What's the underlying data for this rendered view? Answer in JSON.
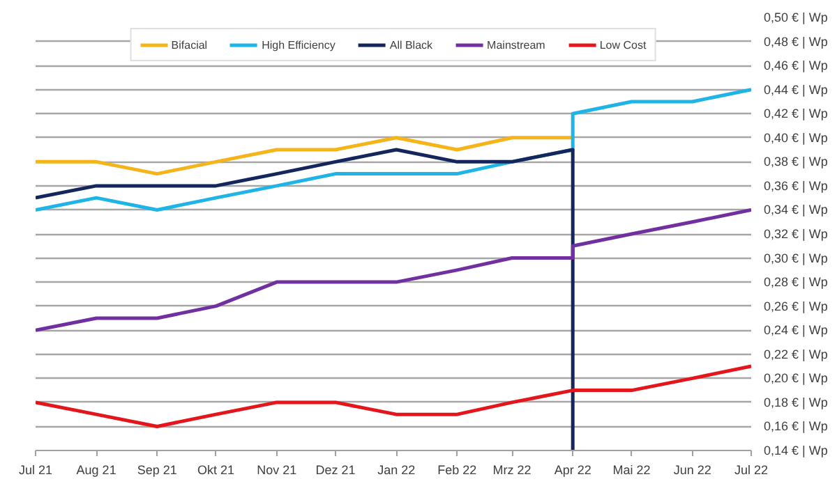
{
  "chart_data": {
    "type": "line",
    "series": [
      {
        "name": "Bifacial",
        "color": "#f4b41a",
        "x": [
          "2021-07",
          "2021-08",
          "2021-09",
          "2021-10",
          "2021-11",
          "2021-12",
          "2022-01",
          "2022-02",
          "2022-03",
          "2022-04"
        ],
        "values": [
          0.38,
          0.38,
          0.37,
          0.38,
          0.39,
          0.39,
          0.4,
          0.39,
          0.4,
          0.4
        ]
      },
      {
        "name": "High Efficiency",
        "color": "#1fb4e6",
        "x": [
          "2021-07",
          "2021-08",
          "2021-09",
          "2021-10",
          "2021-11",
          "2021-12",
          "2022-01",
          "2022-02",
          "2022-03",
          "2022-04",
          "2022-04",
          "2022-05",
          "2022-06",
          "2022-07"
        ],
        "values": [
          0.34,
          0.35,
          0.34,
          0.35,
          0.36,
          0.37,
          0.37,
          0.37,
          0.38,
          0.39,
          0.42,
          0.43,
          0.43,
          0.44
        ]
      },
      {
        "name": "All Black",
        "color": "#14265c",
        "x": [
          "2021-07",
          "2021-08",
          "2021-09",
          "2021-10",
          "2021-11",
          "2021-12",
          "2022-01",
          "2022-02",
          "2022-03",
          "2022-04",
          "2022-04"
        ],
        "values": [
          0.35,
          0.36,
          0.36,
          0.36,
          0.37,
          0.38,
          0.39,
          0.38,
          0.38,
          0.39,
          0.14
        ]
      },
      {
        "name": "Mainstream",
        "color": "#7030a0",
        "x": [
          "2021-07",
          "2021-08",
          "2021-09",
          "2021-10",
          "2021-11",
          "2021-12",
          "2022-01",
          "2022-02",
          "2022-03",
          "2022-04",
          "2022-04",
          "2022-05",
          "2022-06",
          "2022-07"
        ],
        "values": [
          0.24,
          0.25,
          0.25,
          0.26,
          0.28,
          0.28,
          0.28,
          0.29,
          0.3,
          0.3,
          0.31,
          0.32,
          0.33,
          0.34
        ]
      },
      {
        "name": "Low Cost",
        "color": "#e5161b",
        "x": [
          "2021-07",
          "2021-08",
          "2021-09",
          "2021-10",
          "2021-11",
          "2021-12",
          "2022-01",
          "2022-02",
          "2022-03",
          "2022-04",
          "2022-05",
          "2022-06",
          "2022-07"
        ],
        "values": [
          0.18,
          0.17,
          0.16,
          0.17,
          0.18,
          0.18,
          0.17,
          0.17,
          0.18,
          0.19,
          0.19,
          0.2,
          0.21
        ]
      }
    ],
    "xlim": [
      "2021-07",
      "2022-07"
    ],
    "xticks": [
      {
        "value": "2021-07",
        "label": "Jul 21"
      },
      {
        "value": "2021-08",
        "label": "Aug 21"
      },
      {
        "value": "2021-09",
        "label": "Sep 21"
      },
      {
        "value": "2021-10",
        "label": "Okt 21"
      },
      {
        "value": "2021-11",
        "label": "Nov 21"
      },
      {
        "value": "2021-12",
        "label": "Dez 21"
      },
      {
        "value": "2022-01",
        "label": "Jan 22"
      },
      {
        "value": "2022-02",
        "label": "Feb 22"
      },
      {
        "value": "2022-03",
        "label": "Mrz 22"
      },
      {
        "value": "2022-04",
        "label": "Apr 22"
      },
      {
        "value": "2022-05",
        "label": "Mai 22"
      },
      {
        "value": "2022-06",
        "label": "Jun 22"
      },
      {
        "value": "2022-07",
        "label": "Jul 22"
      }
    ],
    "ylim": [
      0.14,
      0.5
    ],
    "yticks": [
      {
        "value": 0.14,
        "label": "0,14 € | Wp"
      },
      {
        "value": 0.16,
        "label": "0,16 € | Wp"
      },
      {
        "value": 0.18,
        "label": "0,18 € | Wp"
      },
      {
        "value": 0.2,
        "label": "0,20 € | Wp"
      },
      {
        "value": 0.22,
        "label": "0,22 € | Wp"
      },
      {
        "value": 0.24,
        "label": "0,24 € | Wp"
      },
      {
        "value": 0.26,
        "label": "0,26 € | Wp"
      },
      {
        "value": 0.28,
        "label": "0,28 € | Wp"
      },
      {
        "value": 0.3,
        "label": "0,30 € | Wp"
      },
      {
        "value": 0.32,
        "label": "0,32 € | Wp"
      },
      {
        "value": 0.34,
        "label": "0,34 € | Wp"
      },
      {
        "value": 0.36,
        "label": "0,36 € | Wp"
      },
      {
        "value": 0.38,
        "label": "0,38 € | Wp"
      },
      {
        "value": 0.4,
        "label": "0,40 € | Wp"
      },
      {
        "value": 0.42,
        "label": "0,42 € | Wp"
      },
      {
        "value": 0.44,
        "label": "0,44 € | Wp"
      },
      {
        "value": 0.46,
        "label": "0,46 € | Wp"
      },
      {
        "value": 0.48,
        "label": "0,48 € | Wp"
      },
      {
        "value": 0.5,
        "label": "0,50 € | Wp"
      }
    ],
    "grid": "y",
    "legend": "top",
    "marker": "none",
    "line_style": "solid"
  }
}
